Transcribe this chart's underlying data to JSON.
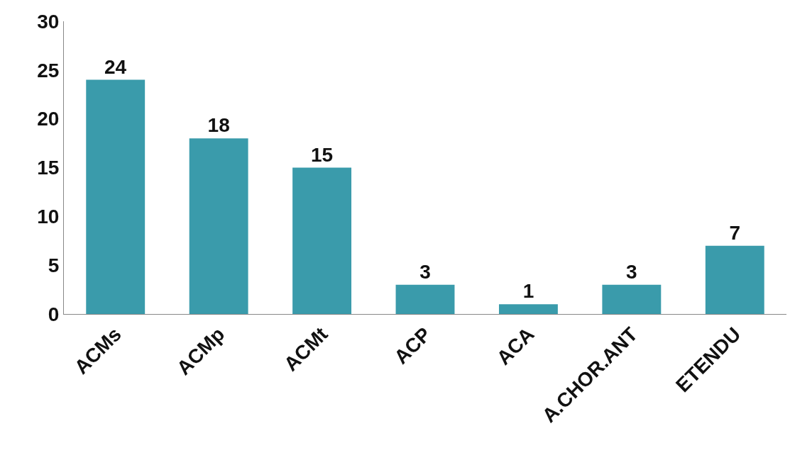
{
  "chart_data": {
    "type": "bar",
    "categories": [
      "ACMs",
      "ACMp",
      "ACMt",
      "ACP",
      "ACA",
      "A.CHOR.ANT",
      "ETENDU"
    ],
    "values": [
      24,
      18,
      15,
      3,
      1,
      3,
      7
    ],
    "color": "#3a9bab",
    "ylim": [
      0,
      30
    ],
    "yticks": [
      0,
      5,
      10,
      15,
      20,
      25,
      30
    ],
    "grid": false,
    "data_labels": true
  }
}
